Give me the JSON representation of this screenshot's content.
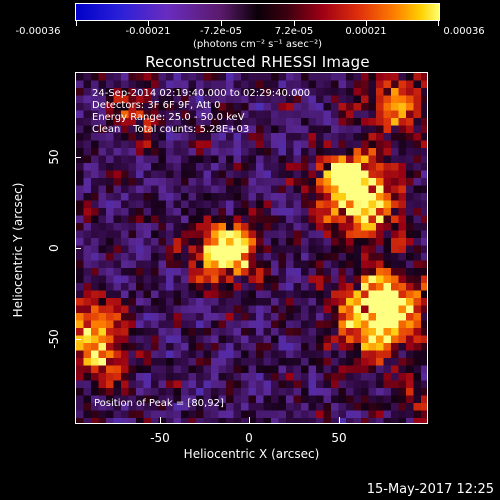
{
  "colorbar": {
    "tick_labels": [
      "-0.00036",
      "-0.00021",
      "-7.2e-05",
      "7.2e-05",
      "0.00021",
      "0.00036"
    ],
    "units": "(photons cm⁻² s⁻¹ asec⁻²)"
  },
  "title": "Reconstructed RHESSI Image",
  "info": {
    "time": "24-Sep-2014 02:19:40.000 to 02:29:40.000",
    "detectors": "Detectors: 3F 6F 9F, Att 0",
    "energy": "Energy Range: 25.0 - 50.0 keV",
    "method": "Clean    Total counts: 5.28E+03"
  },
  "peak": "Position of Peak = [80,92]",
  "axes": {
    "xlabel": "Heliocentric X (arcsec)",
    "ylabel": "Heliocentric Y (arcsec)",
    "xticks": [
      "-50",
      "0",
      "50"
    ],
    "yticks": [
      "50",
      "0",
      "-50"
    ]
  },
  "date": "15-May-2017 12:25"
}
